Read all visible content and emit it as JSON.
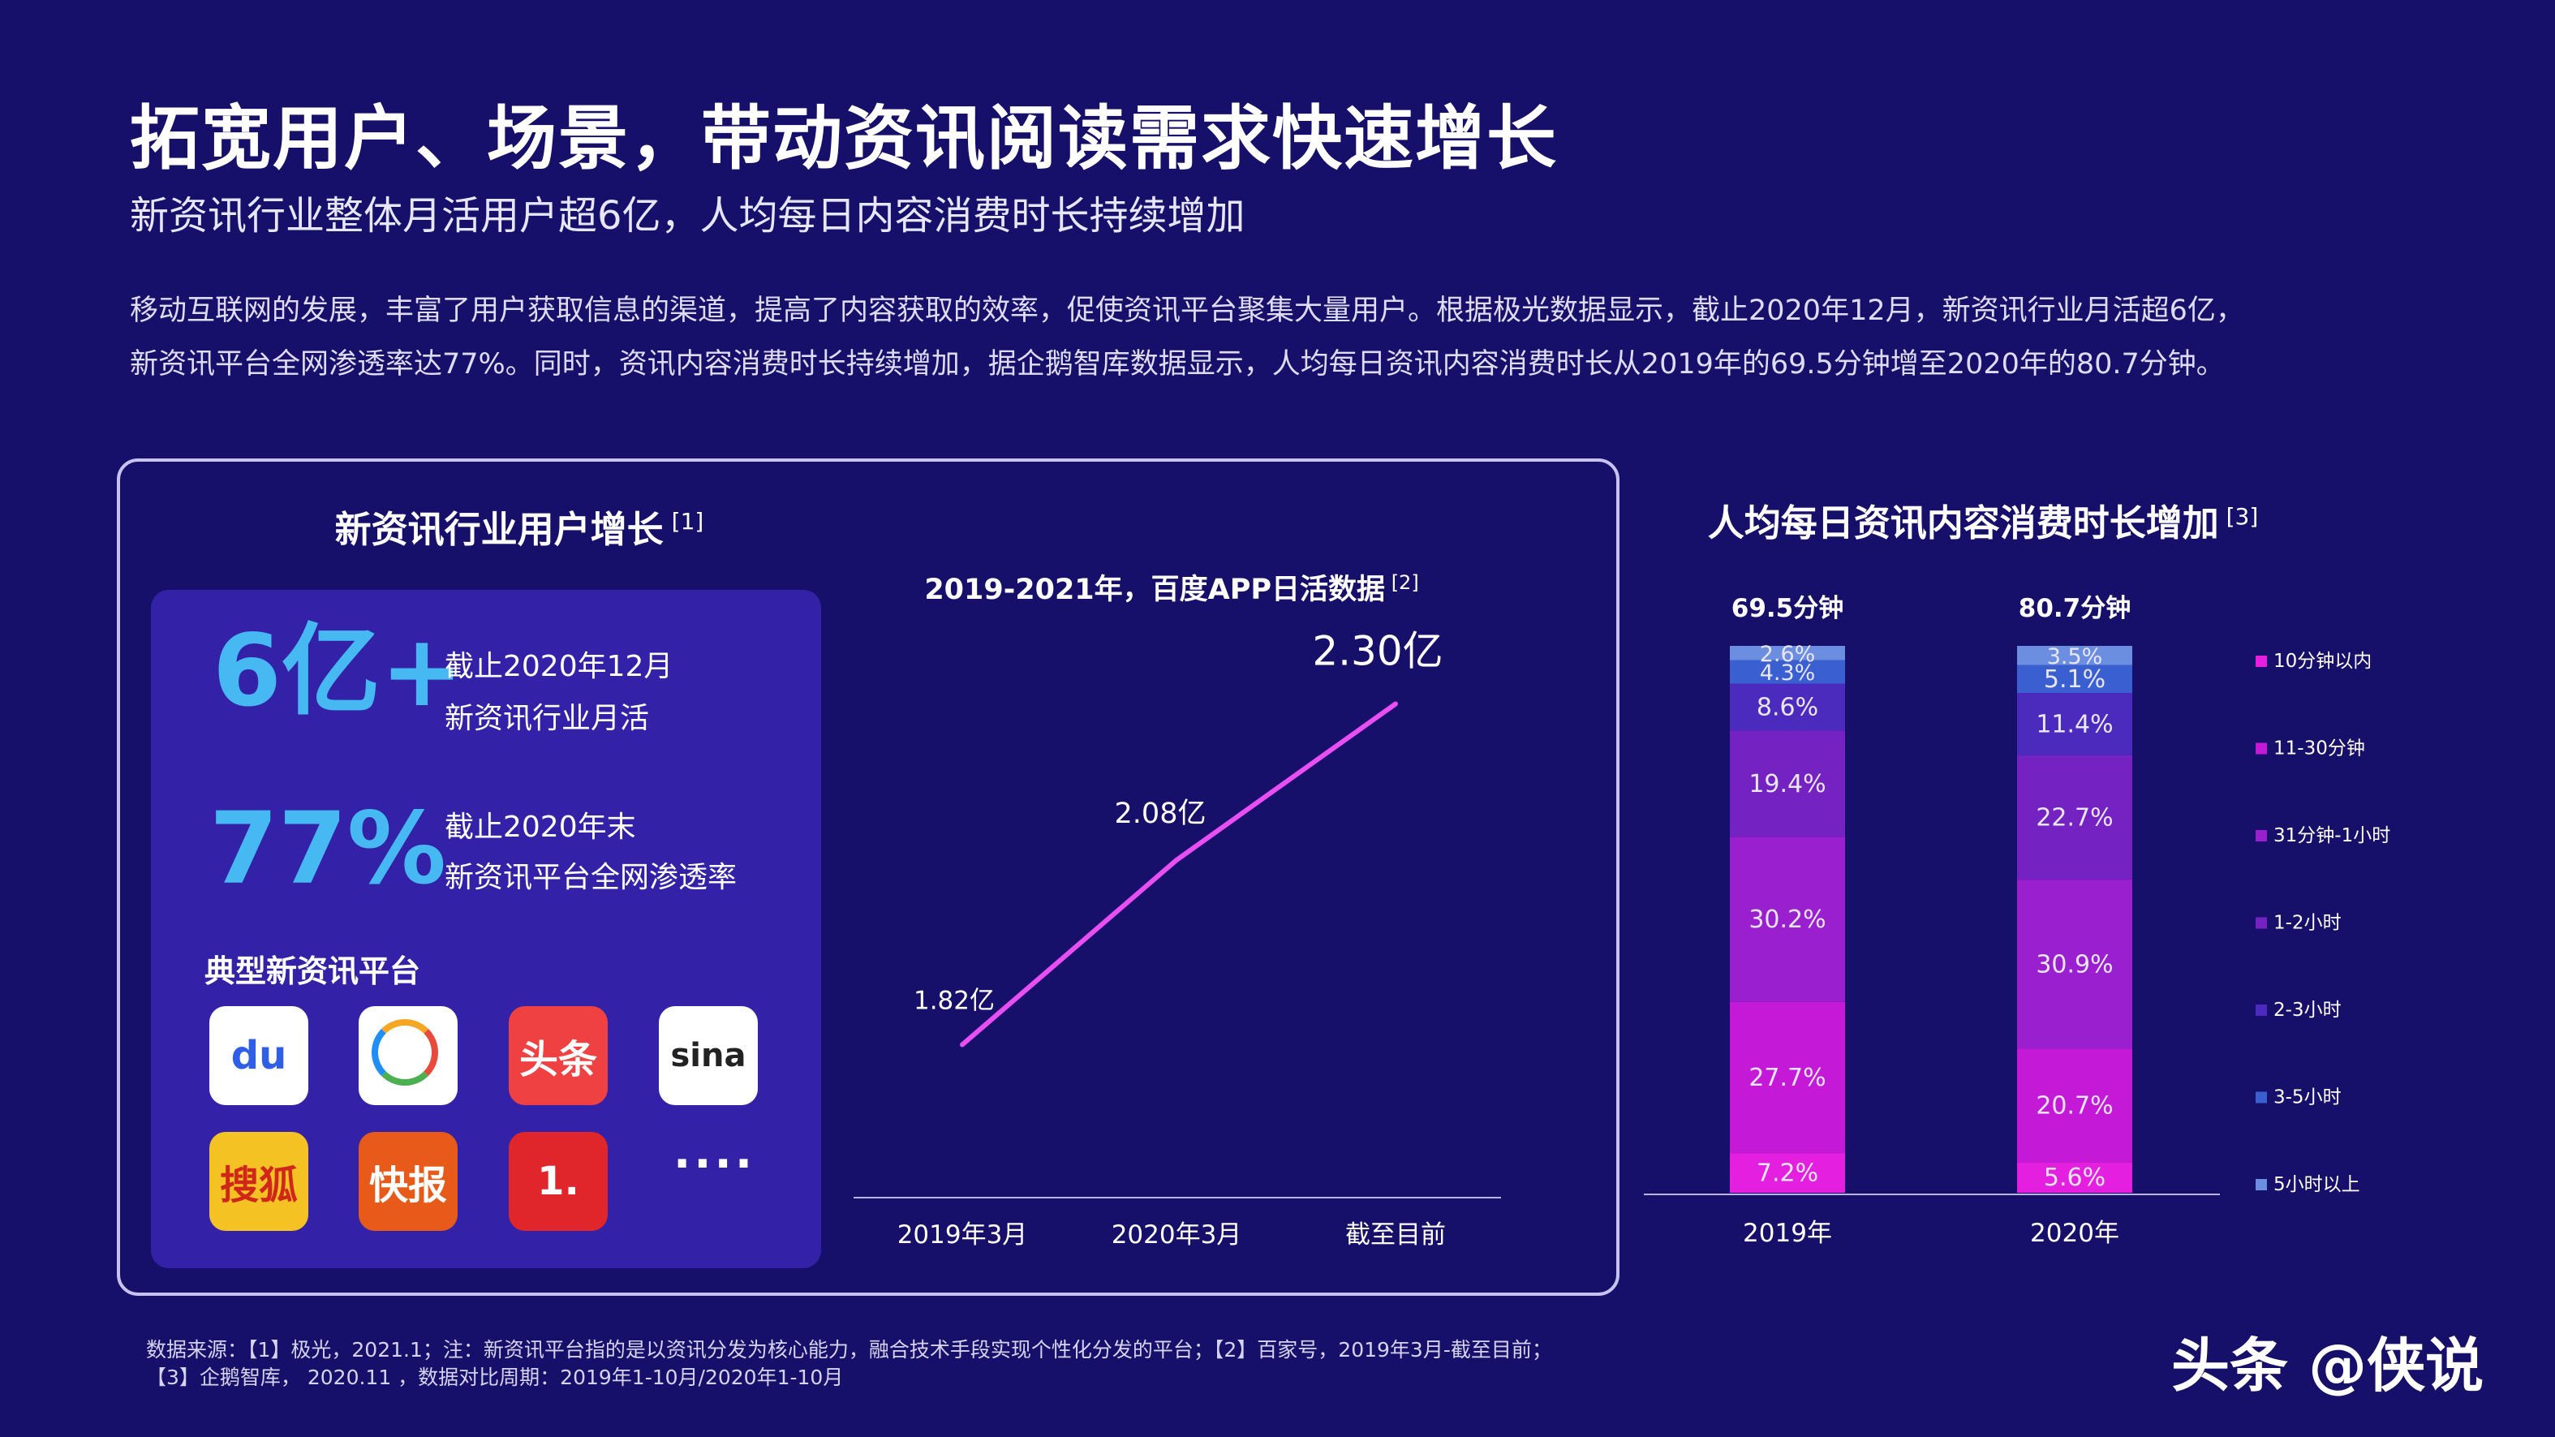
{
  "header": {
    "title": "拓宽用户、场景，带动资讯阅读需求快速增长",
    "subtitle": "新资讯行业整体月活用户超6亿，人均每日内容消费时长持续增加",
    "body_line1": "移动互联网的发展，丰富了用户获取信息的渠道，提高了内容获取的效率，促使资讯平台聚集大量用户。根据极光数据显示，截止2020年12月，新资讯行业月活超6亿，",
    "body_line2": "新资讯平台全网渗透率达77%。同时，资讯内容消费时长持续增加，据企鹅智库数据显示，人均每日资讯内容消费时长从2019年的69.5分钟增至2020年的80.7分钟。"
  },
  "left_panel": {
    "title": "新资讯行业用户增长",
    "title_ref": "[1]",
    "users": {
      "value": "6亿+",
      "desc1": "截止2020年12月",
      "desc2": "新资讯行业月活"
    },
    "penetration": {
      "value": "77%",
      "desc1": "截止2020年末",
      "desc2": "新资讯平台全网渗透率"
    },
    "platforms_title": "典型新资讯平台",
    "platforms": [
      {
        "icon": "baidu-icon",
        "label": "du",
        "bg": "#ffffff",
        "fg": "#2f5fe8"
      },
      {
        "icon": "tencent-news-icon",
        "label": "",
        "bg": "#ffffff",
        "fg": "#1f8ef5"
      },
      {
        "icon": "toutiao-icon",
        "label": "头条",
        "bg": "#f04142",
        "fg": "#ffffff"
      },
      {
        "icon": "sina-icon",
        "label": "sina",
        "bg": "#ffffff",
        "fg": "#222222"
      },
      {
        "icon": "sohu-icon",
        "label": "搜狐",
        "bg": "#f5c223",
        "fg": "#d0271a"
      },
      {
        "icon": "kuaibao-icon",
        "label": "快报",
        "bg": "#e85a1a",
        "fg": "#ffffff"
      },
      {
        "icon": "yidian-icon",
        "label": "1.",
        "bg": "#e0262a",
        "fg": "#ffffff"
      }
    ],
    "more": "····"
  },
  "chart_data": [
    {
      "type": "line",
      "title": "2019-2021年，百度APP日活数据",
      "title_ref": "[2]",
      "categories": [
        "2019年3月",
        "2020年3月",
        "截至目前"
      ],
      "series": [
        {
          "values": [
            1.82,
            2.08,
            2.3
          ]
        }
      ],
      "data_labels": [
        "1.82亿",
        "2.08亿",
        "2.30亿"
      ],
      "ylim": [
        1.6,
        2.4
      ],
      "color": "#e84ef2"
    },
    {
      "type": "bar",
      "stacked": true,
      "title": "人均每日资讯内容消费时长增加",
      "title_ref": "[3]",
      "categories": [
        "2019年",
        "2020年"
      ],
      "totals": [
        "69.5分钟",
        "80.7分钟"
      ],
      "series": [
        {
          "name": "10分钟以内",
          "values": [
            7.2,
            5.6
          ],
          "labels": [
            "7.2%",
            "5.6%"
          ],
          "color": "#e51fe0"
        },
        {
          "name": "11-30分钟",
          "values": [
            27.7,
            20.7
          ],
          "labels": [
            "27.7%",
            "20.7%"
          ],
          "color": "#c41ad7"
        },
        {
          "name": "31分钟-1小时",
          "values": [
            30.2,
            30.9
          ],
          "labels": [
            "30.2%",
            "30.9%"
          ],
          "color": "#9a1fce"
        },
        {
          "name": "1-2小时",
          "values": [
            19.4,
            22.7
          ],
          "labels": [
            "19.4%",
            "22.7%"
          ],
          "color": "#7422c2"
        },
        {
          "name": "2-3小时",
          "values": [
            8.6,
            11.4
          ],
          "labels": [
            "8.6%",
            "11.4%"
          ],
          "color": "#4b2bbd"
        },
        {
          "name": "3-5小时",
          "values": [
            4.3,
            5.1
          ],
          "labels": [
            "4.3%",
            "5.1%"
          ],
          "color": "#3a5fd0"
        },
        {
          "name": "5小时以上",
          "values": [
            2.6,
            3.5
          ],
          "labels": [
            "2.6%",
            "3.5%"
          ],
          "color": "#6c8ee0"
        }
      ],
      "legend_position": "right"
    }
  ],
  "footer": {
    "source1": "数据来源：【1】极光，2021.1；注：新资讯平台指的是以资讯分发为核心能力，融合技术手段实现个性化分发的平台；【2】百家号，2019年3月-截至目前；",
    "source2": "【3】企鹅智库， 2020.11 ，数据对比周期：2019年1-10月/2020年1-10月",
    "watermark": "头条 @侠说"
  }
}
